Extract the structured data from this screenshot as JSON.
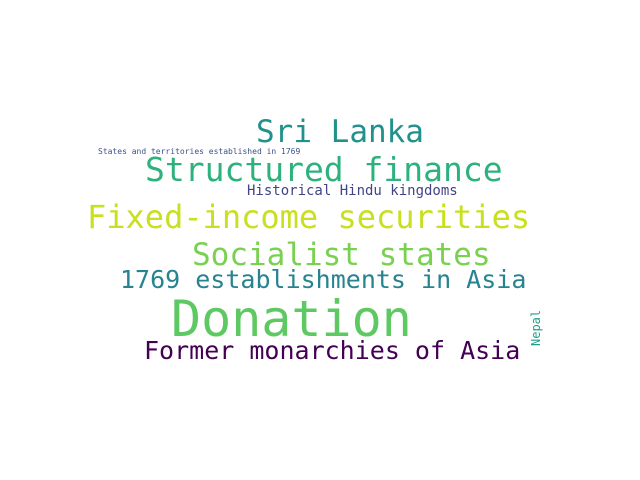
{
  "words": {
    "donation": {
      "text": "Donation",
      "color": "#5ec962"
    },
    "fixed": {
      "text": "Fixed-income securities",
      "color": "#c8e020"
    },
    "structured": {
      "text": "Structured finance",
      "color": "#2db27d"
    },
    "srilanka": {
      "text": "Sri Lanka",
      "color": "#21918c"
    },
    "socialist": {
      "text": "Socialist states",
      "color": "#7ad151"
    },
    "former": {
      "text": "Former monarchies of Asia",
      "color": "#440154"
    },
    "est1769": {
      "text": "1769 establishments in Asia",
      "color": "#26838f"
    },
    "hindu": {
      "text": "Historical Hindu kingdoms",
      "color": "#414487"
    },
    "states": {
      "text": "States and territories established in 1769",
      "color": "#3b528b"
    },
    "nepal": {
      "text": "Nepal",
      "color": "#1f9e89"
    }
  }
}
